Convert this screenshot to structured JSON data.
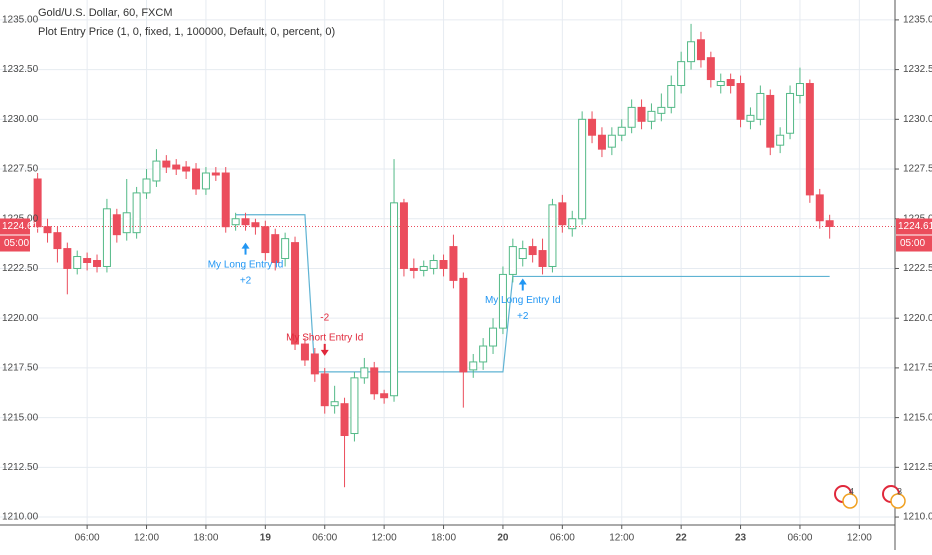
{
  "chart_data": {
    "type": "candlestick",
    "title": "Gold/U.S. Dollar, 60, FXCM",
    "subtitle": "Plot Entry Price (1, 0, fixed, 1, 100000, Default, 0, percent, 0)",
    "x": [
      0,
      1,
      2,
      3,
      4,
      5,
      6,
      7,
      8,
      9,
      10,
      11,
      12,
      13,
      14,
      15,
      16,
      17,
      18,
      19,
      20,
      21,
      22,
      23,
      24,
      25,
      26,
      27,
      28,
      29,
      30,
      31,
      32,
      33,
      34,
      35,
      36,
      37,
      38,
      39,
      40,
      41,
      42,
      43,
      44,
      45,
      46,
      47,
      48,
      49,
      50,
      51,
      52,
      53,
      54,
      55,
      56,
      57,
      58,
      59,
      60,
      61,
      62,
      63,
      64,
      65,
      66,
      67,
      68,
      69,
      70,
      71,
      72,
      73,
      74,
      75,
      76,
      77,
      78,
      79,
      80
    ],
    "open": [
      1227.0,
      1224.6,
      1224.3,
      1223.5,
      1222.5,
      1223.0,
      1222.9,
      1222.6,
      1225.2,
      1224.3,
      1224.3,
      1226.3,
      1226.9,
      1227.9,
      1227.7,
      1227.6,
      1227.5,
      1226.5,
      1227.3,
      1227.3,
      1224.7,
      1225.0,
      1224.8,
      1224.6,
      1224.2,
      1223.0,
      1223.8,
      1218.7,
      1218.2,
      1217.2,
      1215.6,
      1215.7,
      1214.2,
      1217.0,
      1217.5,
      1216.2,
      1216.1,
      1225.8,
      1222.5,
      1222.4,
      1222.5,
      1222.9,
      1223.6,
      1222.0,
      1217.4,
      1217.8,
      1218.6,
      1219.5,
      1222.2,
      1223.0,
      1223.6,
      1223.4,
      1222.6,
      1225.8,
      1224.5,
      1225.0,
      1230.0,
      1229.2,
      1228.6,
      1229.2,
      1229.6,
      1230.6,
      1229.9,
      1230.3,
      1230.6,
      1231.7,
      1232.9,
      1234.0,
      1233.1,
      1231.7,
      1232.0,
      1231.8,
      1229.9,
      1230.0,
      1231.2,
      1228.7,
      1229.3,
      1231.2,
      1231.8,
      1226.2,
      1224.9
    ],
    "high": [
      1227.3,
      1225.0,
      1224.6,
      1223.8,
      1223.4,
      1223.3,
      1223.2,
      1226.0,
      1225.5,
      1227.0,
      1226.6,
      1227.5,
      1228.5,
      1228.2,
      1228.0,
      1227.9,
      1227.8,
      1227.6,
      1227.6,
      1227.6,
      1225.3,
      1225.3,
      1225.0,
      1224.9,
      1224.5,
      1224.3,
      1224.1,
      1219.0,
      1218.5,
      1217.5,
      1216.6,
      1216.0,
      1217.3,
      1218.0,
      1217.8,
      1216.4,
      1228.0,
      1226.0,
      1223.0,
      1222.9,
      1223.2,
      1223.2,
      1224.2,
      1222.3,
      1218.2,
      1219.0,
      1220.0,
      1222.6,
      1224.0,
      1223.9,
      1224.0,
      1224.0,
      1226.0,
      1226.2,
      1225.4,
      1230.4,
      1230.4,
      1229.6,
      1229.6,
      1230.0,
      1231.0,
      1231.0,
      1230.8,
      1231.3,
      1232.2,
      1233.4,
      1234.8,
      1234.4,
      1233.4,
      1232.3,
      1232.3,
      1232.2,
      1230.6,
      1231.7,
      1231.5,
      1229.6,
      1231.7,
      1232.6,
      1232.0,
      1226.5,
      1225.2
    ],
    "low": [
      1224.3,
      1223.8,
      1222.8,
      1221.2,
      1222.2,
      1222.4,
      1222.3,
      1222.3,
      1223.8,
      1223.9,
      1224.0,
      1226.0,
      1226.6,
      1227.3,
      1227.2,
      1227.0,
      1226.2,
      1226.2,
      1226.9,
      1224.3,
      1224.4,
      1224.4,
      1224.2,
      1222.9,
      1222.4,
      1222.6,
      1218.4,
      1217.6,
      1216.8,
      1215.2,
      1215.2,
      1211.5,
      1213.8,
      1216.7,
      1215.9,
      1215.7,
      1215.8,
      1222.1,
      1222.0,
      1222.1,
      1222.2,
      1222.1,
      1221.5,
      1215.5,
      1217.0,
      1217.4,
      1218.2,
      1219.2,
      1221.8,
      1222.6,
      1222.8,
      1222.2,
      1222.3,
      1224.3,
      1224.1,
      1224.7,
      1228.8,
      1228.1,
      1228.2,
      1228.9,
      1229.3,
      1229.5,
      1229.5,
      1229.9,
      1230.3,
      1231.3,
      1232.5,
      1232.6,
      1231.6,
      1231.3,
      1231.3,
      1229.6,
      1229.5,
      1229.7,
      1228.2,
      1228.3,
      1229.0,
      1230.8,
      1225.8,
      1224.5,
      1224.0
    ],
    "close": [
      1224.6,
      1224.3,
      1223.5,
      1222.5,
      1223.1,
      1222.8,
      1222.6,
      1225.5,
      1224.2,
      1225.3,
      1226.3,
      1227.0,
      1227.9,
      1227.6,
      1227.5,
      1227.4,
      1226.5,
      1227.3,
      1227.2,
      1224.6,
      1225.0,
      1224.7,
      1224.6,
      1223.3,
      1222.8,
      1224.0,
      1218.7,
      1217.9,
      1217.2,
      1215.6,
      1215.8,
      1214.1,
      1217.0,
      1217.5,
      1216.2,
      1216.0,
      1225.8,
      1222.5,
      1222.4,
      1222.6,
      1222.9,
      1222.5,
      1221.9,
      1217.3,
      1217.8,
      1218.6,
      1219.5,
      1222.2,
      1223.6,
      1223.5,
      1223.2,
      1222.6,
      1225.7,
      1224.7,
      1225.0,
      1230.0,
      1229.2,
      1228.5,
      1229.2,
      1229.6,
      1230.6,
      1229.9,
      1230.4,
      1230.6,
      1231.7,
      1232.9,
      1233.9,
      1233.0,
      1232.0,
      1231.9,
      1231.7,
      1230.0,
      1230.2,
      1231.3,
      1228.6,
      1229.2,
      1231.3,
      1231.8,
      1226.2,
      1224.9,
      1224.61
    ],
    "up_color": "#53b987",
    "down_color": "#eb4d5c",
    "entry_line": {
      "color": "#5fb3d3",
      "values": [
        null,
        null,
        null,
        null,
        null,
        null,
        null,
        null,
        null,
        null,
        null,
        null,
        null,
        null,
        null,
        null,
        null,
        null,
        null,
        null,
        1225.2,
        1225.2,
        1225.2,
        1225.2,
        1225.2,
        1225.2,
        1225.2,
        1225.2,
        1217.3,
        1217.3,
        1217.3,
        1217.3,
        1217.3,
        1217.3,
        1217.3,
        1217.3,
        1217.3,
        1217.3,
        1217.3,
        1217.3,
        1217.3,
        1217.3,
        1217.3,
        1217.3,
        1217.3,
        1217.3,
        1217.3,
        1217.3,
        1222.1,
        1222.1,
        1222.1,
        1222.1,
        1222.1,
        1222.1,
        1222.1,
        1222.1,
        1222.1,
        1222.1,
        1222.1,
        1222.1,
        1222.1,
        1222.1,
        1222.1,
        1222.1,
        1222.1,
        1222.1,
        1222.1,
        1222.1,
        1222.1,
        1222.1,
        1222.1,
        1222.1,
        1222.1,
        1222.1,
        1222.1,
        1222.1,
        1222.1,
        1222.1,
        1222.1,
        1222.1,
        1222.1
      ]
    },
    "entries": [
      {
        "x": 21,
        "side": "long",
        "label": "My Long Entry Id",
        "qty": "+2",
        "color": "#2196f3"
      },
      {
        "x": 29,
        "side": "short",
        "label": "My Short Entry Id",
        "qty": "-2",
        "color": "#e0283b"
      },
      {
        "x": 49,
        "side": "long",
        "label": "My Long Entry Id",
        "qty": "+2",
        "color": "#2196f3"
      }
    ],
    "last_price": {
      "value": 1224.61,
      "label": "1224.61"
    },
    "countdown": "05:00",
    "last_price_color": "#eb4d5c",
    "event_badges": [
      "4",
      "3"
    ],
    "xlim": [
      -3.8,
      86.6
    ],
    "xticks": [
      {
        "value": 5,
        "label": "06:00"
      },
      {
        "value": 11,
        "label": "12:00"
      },
      {
        "value": 17,
        "label": "18:00"
      },
      {
        "value": 23,
        "label": "19"
      },
      {
        "value": 29,
        "label": "06:00"
      },
      {
        "value": 35,
        "label": "12:00"
      },
      {
        "value": 41,
        "label": "18:00"
      },
      {
        "value": 47,
        "label": "20"
      },
      {
        "value": 53,
        "label": "06:00"
      },
      {
        "value": 59,
        "label": "12:00"
      },
      {
        "value": 65,
        "label": "22"
      },
      {
        "value": 71,
        "label": "23"
      },
      {
        "value": 77,
        "label": "06:00"
      },
      {
        "value": 83,
        "label": "12:00"
      }
    ],
    "ylim": [
      1209.6,
      1236.0
    ],
    "yticks": [
      {
        "value": 1210,
        "label": "1210.00"
      },
      {
        "value": 1212.5,
        "label": "1212.50"
      },
      {
        "value": 1215,
        "label": "1215.00"
      },
      {
        "value": 1217.5,
        "label": "1217.50"
      },
      {
        "value": 1220,
        "label": "1220.00"
      },
      {
        "value": 1222.5,
        "label": "1222.50"
      },
      {
        "value": 1225,
        "label": "1225.00"
      },
      {
        "value": 1227.5,
        "label": "1227.50"
      },
      {
        "value": 1230,
        "label": "1230.00"
      },
      {
        "value": 1232.5,
        "label": "1232.50"
      },
      {
        "value": 1235,
        "label": "1235.00"
      }
    ],
    "grid": true
  }
}
